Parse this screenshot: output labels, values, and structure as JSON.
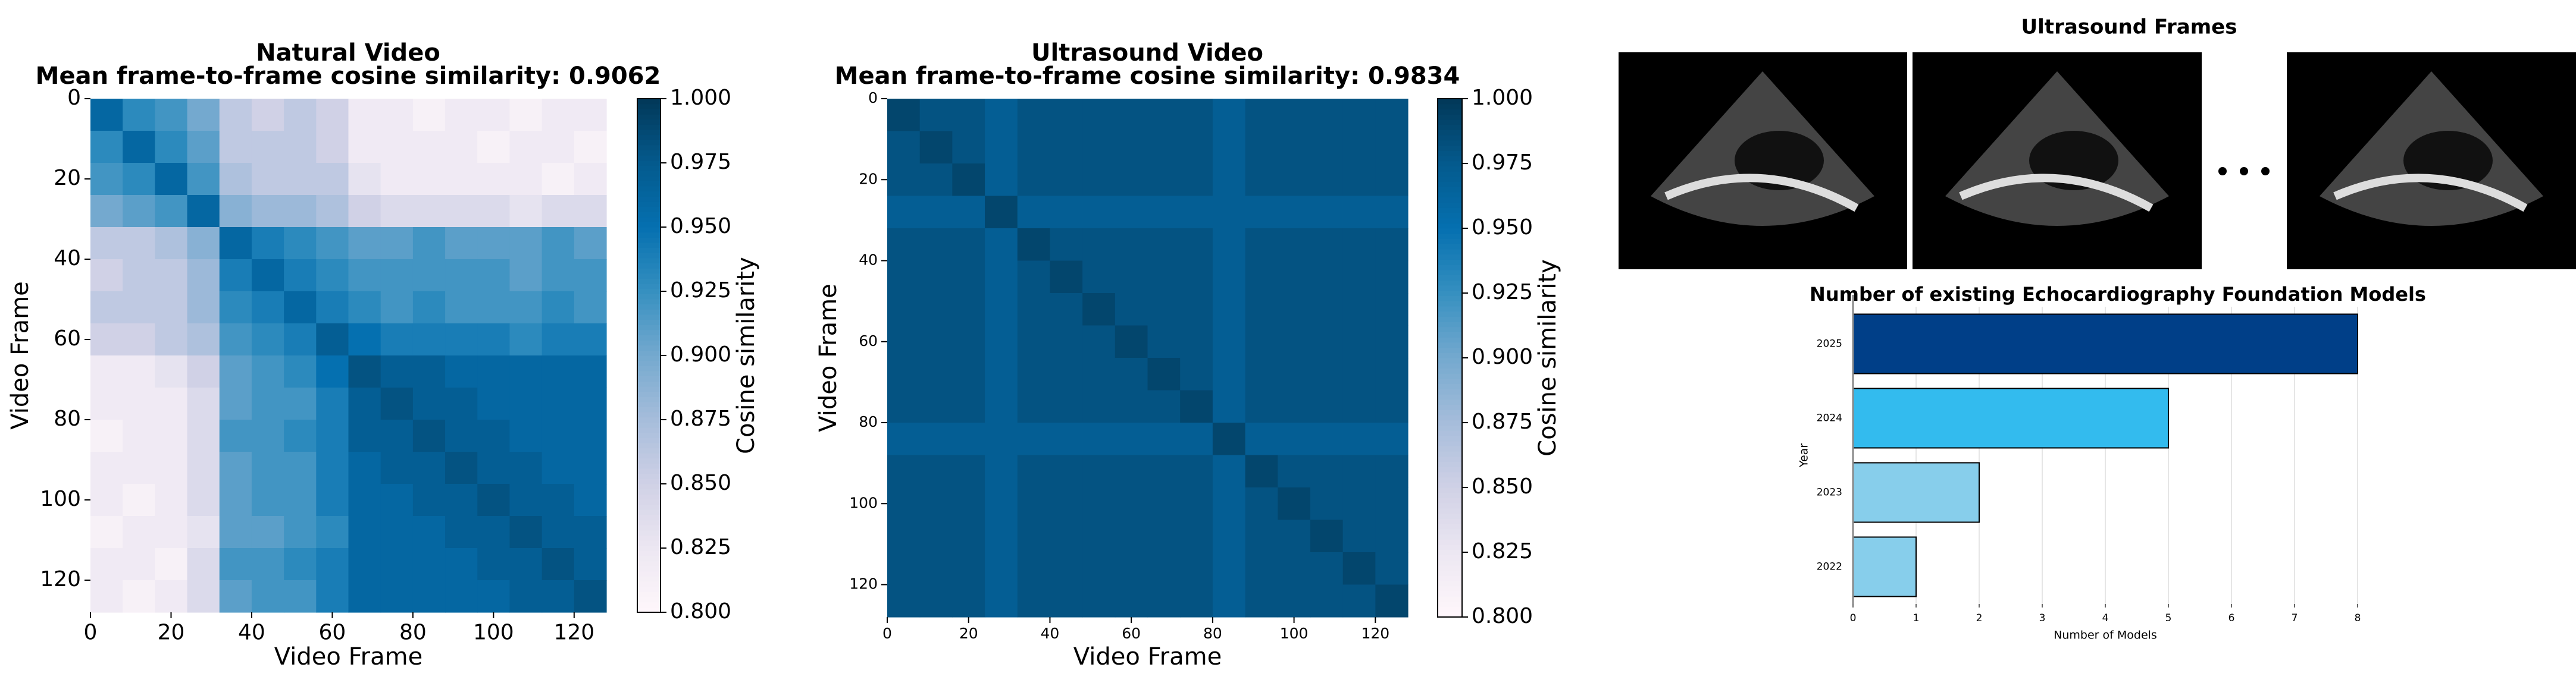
{
  "chart_data": [
    {
      "type": "heatmap",
      "title": "Natural Video",
      "subtitle": "Mean frame-to-frame cosine similarity: 0.9062",
      "xlabel": "Video Frame",
      "ylabel": "Video Frame",
      "colorbar_label": "Cosine similarity",
      "xlim": [
        0,
        128
      ],
      "ylim": [
        128,
        0
      ],
      "xticks": [
        0,
        20,
        40,
        60,
        80,
        100,
        120
      ],
      "yticks": [
        0,
        20,
        40,
        60,
        80,
        100,
        120
      ],
      "clim": [
        0.8,
        1.0
      ],
      "cticks": [
        {
          "value": 0.8,
          "label": "0.800"
        },
        {
          "value": 0.825,
          "label": "0.825"
        },
        {
          "value": 0.85,
          "label": "0.850"
        },
        {
          "value": 0.875,
          "label": "0.875"
        },
        {
          "value": 0.9,
          "label": "0.900"
        },
        {
          "value": 0.925,
          "label": "0.925"
        },
        {
          "value": 0.95,
          "label": "0.950"
        },
        {
          "value": 0.975,
          "label": "0.975"
        },
        {
          "value": 1.0,
          "label": "1.000"
        }
      ],
      "colors": [
        "#fff7fb",
        "#ece7f2",
        "#d0d1e6",
        "#a6bddb",
        "#74a9cf",
        "#3690c0",
        "#0570b0",
        "#045a8d",
        "#023858"
      ],
      "values": [
        [
          0.96,
          0.93,
          0.92,
          0.9,
          0.86,
          0.85,
          0.86,
          0.85,
          0.82,
          0.82,
          0.81,
          0.82,
          0.82,
          0.81,
          0.82,
          0.82
        ],
        [
          0.93,
          0.96,
          0.93,
          0.91,
          0.86,
          0.86,
          0.86,
          0.85,
          0.82,
          0.82,
          0.82,
          0.82,
          0.81,
          0.82,
          0.82,
          0.81
        ],
        [
          0.92,
          0.93,
          0.96,
          0.92,
          0.87,
          0.86,
          0.86,
          0.86,
          0.83,
          0.82,
          0.82,
          0.82,
          0.82,
          0.82,
          0.81,
          0.82
        ],
        [
          0.9,
          0.91,
          0.92,
          0.96,
          0.89,
          0.88,
          0.88,
          0.87,
          0.85,
          0.84,
          0.84,
          0.84,
          0.84,
          0.83,
          0.84,
          0.84
        ],
        [
          0.86,
          0.86,
          0.87,
          0.89,
          0.96,
          0.94,
          0.93,
          0.92,
          0.91,
          0.91,
          0.92,
          0.91,
          0.91,
          0.91,
          0.92,
          0.91
        ],
        [
          0.85,
          0.86,
          0.86,
          0.88,
          0.94,
          0.96,
          0.94,
          0.93,
          0.92,
          0.92,
          0.92,
          0.92,
          0.92,
          0.91,
          0.92,
          0.92
        ],
        [
          0.86,
          0.86,
          0.86,
          0.88,
          0.93,
          0.94,
          0.96,
          0.94,
          0.93,
          0.92,
          0.93,
          0.92,
          0.92,
          0.92,
          0.93,
          0.92
        ],
        [
          0.85,
          0.85,
          0.86,
          0.87,
          0.92,
          0.93,
          0.94,
          0.97,
          0.95,
          0.94,
          0.94,
          0.94,
          0.94,
          0.93,
          0.94,
          0.94
        ],
        [
          0.82,
          0.82,
          0.83,
          0.85,
          0.91,
          0.92,
          0.93,
          0.95,
          0.98,
          0.97,
          0.97,
          0.96,
          0.96,
          0.96,
          0.96,
          0.96
        ],
        [
          0.82,
          0.82,
          0.82,
          0.84,
          0.91,
          0.92,
          0.92,
          0.94,
          0.97,
          0.98,
          0.97,
          0.97,
          0.96,
          0.96,
          0.96,
          0.96
        ],
        [
          0.81,
          0.82,
          0.82,
          0.84,
          0.92,
          0.92,
          0.93,
          0.94,
          0.97,
          0.97,
          0.98,
          0.97,
          0.97,
          0.96,
          0.96,
          0.96
        ],
        [
          0.82,
          0.82,
          0.82,
          0.84,
          0.91,
          0.92,
          0.92,
          0.94,
          0.96,
          0.97,
          0.97,
          0.98,
          0.97,
          0.97,
          0.96,
          0.96
        ],
        [
          0.82,
          0.81,
          0.82,
          0.84,
          0.91,
          0.92,
          0.92,
          0.94,
          0.96,
          0.96,
          0.97,
          0.97,
          0.98,
          0.97,
          0.97,
          0.96
        ],
        [
          0.81,
          0.82,
          0.82,
          0.83,
          0.91,
          0.91,
          0.92,
          0.93,
          0.96,
          0.96,
          0.96,
          0.97,
          0.97,
          0.98,
          0.97,
          0.97
        ],
        [
          0.82,
          0.82,
          0.81,
          0.84,
          0.92,
          0.92,
          0.93,
          0.94,
          0.96,
          0.96,
          0.96,
          0.96,
          0.97,
          0.97,
          0.98,
          0.97
        ],
        [
          0.82,
          0.81,
          0.82,
          0.84,
          0.91,
          0.92,
          0.92,
          0.94,
          0.96,
          0.96,
          0.96,
          0.96,
          0.96,
          0.97,
          0.97,
          0.98
        ]
      ]
    },
    {
      "type": "heatmap",
      "title": "Ultrasound Video",
      "subtitle": "Mean frame-to-frame cosine similarity: 0.9834",
      "xlabel": "Video Frame",
      "ylabel": "Video Frame",
      "colorbar_label": "Cosine similarity",
      "xlim": [
        0,
        128
      ],
      "ylim": [
        128,
        0
      ],
      "xticks": [
        0,
        20,
        40,
        60,
        80,
        100,
        120
      ],
      "yticks": [
        0,
        20,
        40,
        60,
        80,
        100,
        120
      ],
      "clim": [
        0.8,
        1.0
      ],
      "cticks": [
        {
          "value": 0.8,
          "label": "0.800"
        },
        {
          "value": 0.825,
          "label": "0.825"
        },
        {
          "value": 0.85,
          "label": "0.850"
        },
        {
          "value": 0.875,
          "label": "0.875"
        },
        {
          "value": 0.9,
          "label": "0.900"
        },
        {
          "value": 0.925,
          "label": "0.925"
        },
        {
          "value": 0.95,
          "label": "0.950"
        },
        {
          "value": 0.975,
          "label": "0.975"
        },
        {
          "value": 1.0,
          "label": "1.000"
        }
      ],
      "colors": [
        "#fff7fb",
        "#ece7f2",
        "#d0d1e6",
        "#a6bddb",
        "#74a9cf",
        "#3690c0",
        "#0570b0",
        "#045a8d",
        "#023858"
      ],
      "values": [
        [
          0.99,
          0.98,
          0.98,
          0.97,
          0.98,
          0.98,
          0.98,
          0.98,
          0.98,
          0.98,
          0.97,
          0.98,
          0.98,
          0.98,
          0.98,
          0.98
        ],
        [
          0.98,
          0.99,
          0.98,
          0.97,
          0.98,
          0.98,
          0.98,
          0.98,
          0.98,
          0.98,
          0.97,
          0.98,
          0.98,
          0.98,
          0.98,
          0.98
        ],
        [
          0.98,
          0.98,
          0.99,
          0.97,
          0.98,
          0.98,
          0.98,
          0.98,
          0.98,
          0.98,
          0.97,
          0.98,
          0.98,
          0.98,
          0.98,
          0.98
        ],
        [
          0.97,
          0.97,
          0.97,
          0.99,
          0.97,
          0.97,
          0.97,
          0.97,
          0.97,
          0.97,
          0.97,
          0.97,
          0.97,
          0.97,
          0.97,
          0.97
        ],
        [
          0.98,
          0.98,
          0.98,
          0.97,
          0.99,
          0.98,
          0.98,
          0.98,
          0.98,
          0.98,
          0.97,
          0.98,
          0.98,
          0.98,
          0.98,
          0.98
        ],
        [
          0.98,
          0.98,
          0.98,
          0.97,
          0.98,
          0.99,
          0.98,
          0.98,
          0.98,
          0.98,
          0.97,
          0.98,
          0.98,
          0.98,
          0.98,
          0.98
        ],
        [
          0.98,
          0.98,
          0.98,
          0.97,
          0.98,
          0.98,
          0.99,
          0.98,
          0.98,
          0.98,
          0.97,
          0.98,
          0.98,
          0.98,
          0.98,
          0.98
        ],
        [
          0.98,
          0.98,
          0.98,
          0.97,
          0.98,
          0.98,
          0.98,
          0.99,
          0.98,
          0.98,
          0.97,
          0.98,
          0.98,
          0.98,
          0.98,
          0.98
        ],
        [
          0.98,
          0.98,
          0.98,
          0.97,
          0.98,
          0.98,
          0.98,
          0.98,
          0.99,
          0.98,
          0.97,
          0.98,
          0.98,
          0.98,
          0.98,
          0.98
        ],
        [
          0.98,
          0.98,
          0.98,
          0.97,
          0.98,
          0.98,
          0.98,
          0.98,
          0.98,
          0.99,
          0.97,
          0.98,
          0.98,
          0.98,
          0.98,
          0.98
        ],
        [
          0.97,
          0.97,
          0.97,
          0.97,
          0.97,
          0.97,
          0.97,
          0.97,
          0.97,
          0.97,
          0.99,
          0.97,
          0.97,
          0.97,
          0.97,
          0.97
        ],
        [
          0.98,
          0.98,
          0.98,
          0.97,
          0.98,
          0.98,
          0.98,
          0.98,
          0.98,
          0.98,
          0.97,
          0.99,
          0.98,
          0.98,
          0.98,
          0.98
        ],
        [
          0.98,
          0.98,
          0.98,
          0.97,
          0.98,
          0.98,
          0.98,
          0.98,
          0.98,
          0.98,
          0.97,
          0.98,
          0.99,
          0.98,
          0.98,
          0.98
        ],
        [
          0.98,
          0.98,
          0.98,
          0.97,
          0.98,
          0.98,
          0.98,
          0.98,
          0.98,
          0.98,
          0.97,
          0.98,
          0.98,
          0.99,
          0.98,
          0.98
        ],
        [
          0.98,
          0.98,
          0.98,
          0.97,
          0.98,
          0.98,
          0.98,
          0.98,
          0.98,
          0.98,
          0.97,
          0.98,
          0.98,
          0.98,
          0.99,
          0.98
        ],
        [
          0.98,
          0.98,
          0.98,
          0.97,
          0.98,
          0.98,
          0.98,
          0.98,
          0.98,
          0.98,
          0.97,
          0.98,
          0.98,
          0.98,
          0.98,
          0.99
        ]
      ]
    },
    {
      "type": "bar",
      "orientation": "horizontal",
      "title": "Number of existing Echocardiography Foundation Models",
      "xlabel": "Number of Models",
      "ylabel": "Year",
      "categories": [
        "2022",
        "2023",
        "2024",
        "2025"
      ],
      "values": [
        1,
        2,
        5,
        8
      ],
      "colors": [
        "#87ceeb",
        "#87ceeb",
        "#33bbee",
        "#003f88"
      ],
      "xlim": [
        0,
        8
      ],
      "xticks": [
        0,
        1,
        2,
        3,
        4,
        5,
        6,
        7,
        8
      ],
      "grid": true
    }
  ],
  "image_panel": {
    "title": "Ultrasound Frames"
  }
}
